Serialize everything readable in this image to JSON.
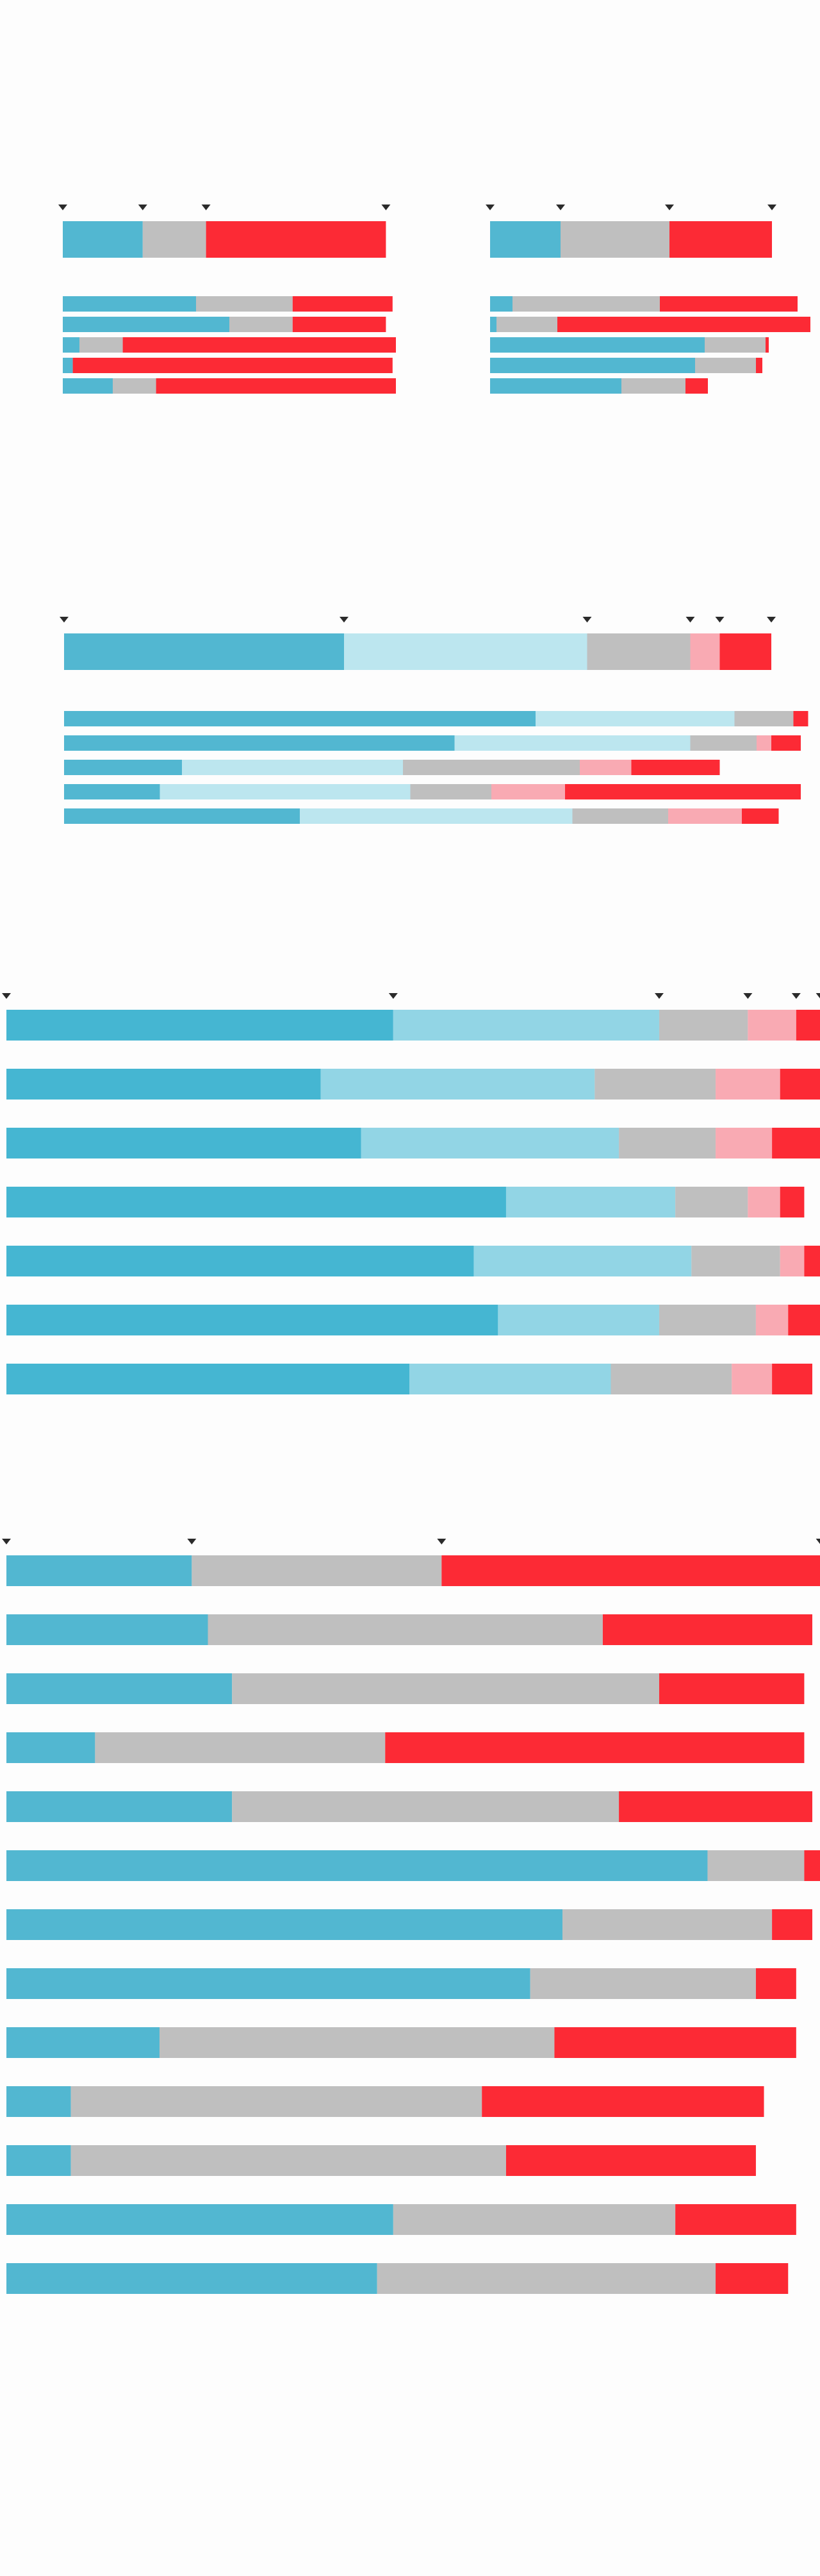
{
  "palette": {
    "blue": "#52b7d1",
    "light_blue": "#bce6ef",
    "gray": "#bfbfbf",
    "pink": "#f9aab3",
    "red": "#fc2a35",
    "blue_vivid": "#45b6d2",
    "light_blue_vivid": "#92d5e5",
    "marker": "#2b2b2b"
  },
  "marker_icon": "down-triangle-icon",
  "chart_data": [
    {
      "id": "chart-1a",
      "type": "bar",
      "orientation": "horizontal",
      "stacked": true,
      "axes": "none",
      "grid": false,
      "legend": "none",
      "segment_colors": [
        "blue",
        "gray",
        "red"
      ],
      "summary": [
        0.24,
        0.19,
        0.54
      ],
      "rows": [
        [
          0.4,
          0.29,
          0.3
        ],
        [
          0.5,
          0.19,
          0.28
        ],
        [
          0.05,
          0.13,
          0.82
        ],
        [
          0.03,
          0.0,
          0.96
        ],
        [
          0.15,
          0.13,
          0.72
        ]
      ]
    },
    {
      "id": "chart-1b",
      "type": "bar",
      "orientation": "horizontal",
      "stacked": true,
      "axes": "none",
      "grid": false,
      "legend": "none",
      "segment_colors": [
        "blue",
        "gray",
        "red"
      ],
      "summary": [
        0.22,
        0.34,
        0.32
      ],
      "rows": [
        [
          0.07,
          0.46,
          0.43
        ],
        [
          0.02,
          0.19,
          0.79
        ],
        [
          0.67,
          0.19,
          0.01
        ],
        [
          0.64,
          0.19,
          0.02
        ],
        [
          0.41,
          0.2,
          0.07
        ]
      ]
    },
    {
      "id": "chart-2",
      "type": "bar",
      "orientation": "horizontal",
      "stacked": true,
      "axes": "none",
      "grid": false,
      "legend": "none",
      "segment_colors": [
        "blue",
        "light_blue",
        "gray",
        "pink",
        "red"
      ],
      "summary": [
        0.38,
        0.33,
        0.14,
        0.04,
        0.07
      ],
      "rows": [
        [
          0.64,
          0.27,
          0.08,
          0.0,
          0.02
        ],
        [
          0.53,
          0.32,
          0.09,
          0.02,
          0.04
        ],
        [
          0.16,
          0.3,
          0.24,
          0.07,
          0.12
        ],
        [
          0.13,
          0.34,
          0.11,
          0.1,
          0.32
        ],
        [
          0.32,
          0.37,
          0.13,
          0.1,
          0.05
        ]
      ]
    },
    {
      "id": "chart-3",
      "type": "bar",
      "orientation": "horizontal",
      "stacked": true,
      "axes": "none",
      "grid": false,
      "legend": "none",
      "segment_colors": [
        "blue_vivid",
        "light_blue_vivid",
        "gray",
        "pink",
        "red"
      ],
      "summary": null,
      "rows": [
        [
          0.48,
          0.33,
          0.11,
          0.06,
          0.03
        ],
        [
          0.39,
          0.34,
          0.15,
          0.08,
          0.05
        ],
        [
          0.44,
          0.32,
          0.12,
          0.07,
          0.06
        ],
        [
          0.62,
          0.21,
          0.09,
          0.04,
          0.03
        ],
        [
          0.58,
          0.27,
          0.11,
          0.03,
          0.03
        ],
        [
          0.61,
          0.2,
          0.12,
          0.04,
          0.04
        ],
        [
          0.5,
          0.25,
          0.15,
          0.05,
          0.05
        ]
      ]
    },
    {
      "id": "chart-4",
      "type": "bar",
      "orientation": "horizontal",
      "stacked": true,
      "axes": "none",
      "grid": false,
      "legend": "none",
      "segment_colors": [
        "blue",
        "gray",
        "red"
      ],
      "summary": null,
      "rows": [
        [
          0.23,
          0.31,
          0.47
        ],
        [
          0.25,
          0.49,
          0.26
        ],
        [
          0.28,
          0.53,
          0.18
        ],
        [
          0.11,
          0.36,
          0.52
        ],
        [
          0.28,
          0.48,
          0.24
        ],
        [
          0.87,
          0.12,
          0.02
        ],
        [
          0.69,
          0.26,
          0.05
        ],
        [
          0.65,
          0.28,
          0.05
        ],
        [
          0.19,
          0.49,
          0.3
        ],
        [
          0.08,
          0.51,
          0.35
        ],
        [
          0.08,
          0.54,
          0.31
        ],
        [
          0.48,
          0.35,
          0.15
        ],
        [
          0.46,
          0.42,
          0.09
        ]
      ]
    }
  ]
}
